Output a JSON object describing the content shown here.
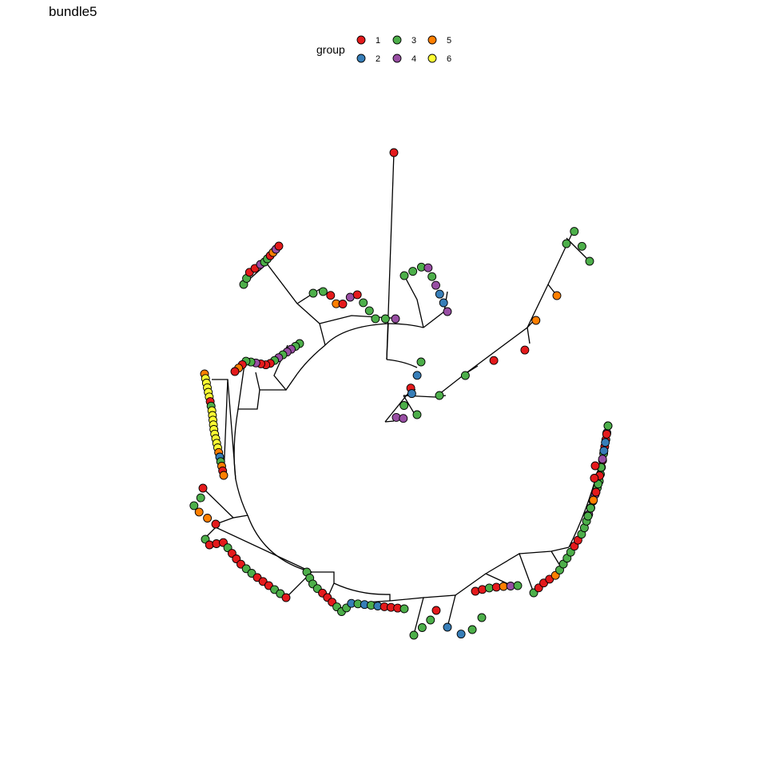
{
  "title": "bundle5",
  "legend": {
    "title": "group",
    "items": [
      {
        "label": "1",
        "color": "#e41a1c"
      },
      {
        "label": "2",
        "color": "#377eb8"
      },
      {
        "label": "3",
        "color": "#4daf4a"
      },
      {
        "label": "4",
        "color": "#984ea3"
      },
      {
        "label": "5",
        "color": "#ff7f00"
      },
      {
        "label": "6",
        "color": "#ffff33"
      }
    ]
  },
  "tree": {
    "layout": "circular",
    "tip_groups": [
      "1",
      "3",
      "3",
      "1",
      "1",
      "4",
      "3",
      "3",
      "1",
      "5",
      "4",
      "1",
      "3",
      "3",
      "1",
      "5",
      "1",
      "4",
      "1",
      "3",
      "3",
      "3",
      "3",
      "4",
      "3",
      "3",
      "3",
      "4",
      "3",
      "4",
      "2",
      "2",
      "4",
      "3",
      "2",
      "1",
      "2",
      "3",
      "4",
      "4",
      "3",
      "3",
      "3",
      "1",
      "1",
      "5",
      "5",
      "3",
      "3",
      "3",
      "3",
      "3",
      "3",
      "4",
      "4",
      "3",
      "4",
      "3",
      "1",
      "1",
      "1",
      "4",
      "3",
      "3",
      "1",
      "5",
      "1",
      "5",
      "6",
      "6",
      "6",
      "6",
      "6",
      "1",
      "3",
      "6",
      "6",
      "6",
      "6",
      "6",
      "6",
      "6",
      "6",
      "6",
      "5",
      "2",
      "3",
      "5",
      "1",
      "5",
      "1",
      "3",
      "3",
      "5",
      "5",
      "1",
      "3",
      "1",
      "1",
      "1",
      "3",
      "1",
      "1",
      "1",
      "3",
      "3",
      "1",
      "1",
      "1",
      "3",
      "3",
      "1",
      "3",
      "3",
      "3",
      "3",
      "1",
      "1",
      "1",
      "3",
      "3",
      "3",
      "2",
      "3",
      "2",
      "3",
      "2",
      "1",
      "1",
      "1",
      "3",
      "3",
      "3",
      "3",
      "1",
      "2",
      "2",
      "3",
      "3",
      "1",
      "1",
      "3",
      "1",
      "5",
      "4",
      "3",
      "3",
      "1",
      "1",
      "1",
      "5",
      "3",
      "3",
      "3",
      "3",
      "1",
      "1",
      "3",
      "3",
      "3",
      "4",
      "1",
      "3",
      "4",
      "3",
      "3",
      "3",
      "3",
      "1",
      "3",
      "1",
      "1",
      "4",
      "3",
      "3",
      "1",
      "2",
      "2",
      "4",
      "3",
      "1",
      "3",
      "1",
      "5",
      "3",
      "3",
      "1",
      "1"
    ]
  }
}
